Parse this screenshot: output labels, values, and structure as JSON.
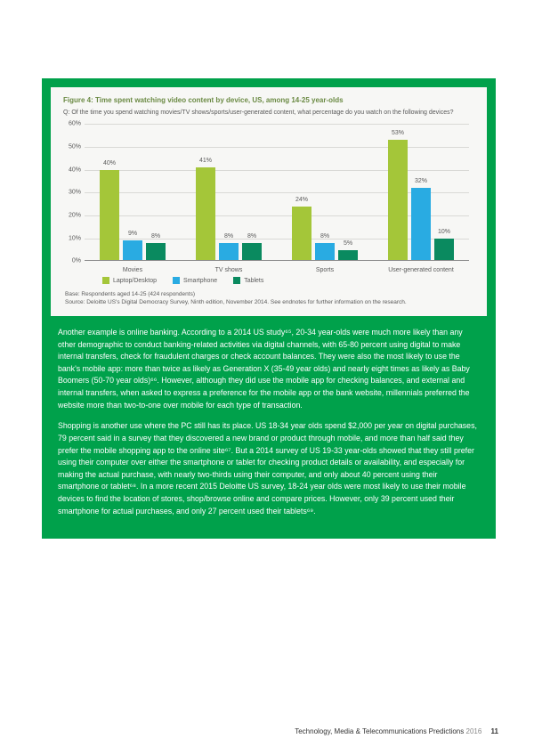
{
  "chart": {
    "title": "Figure 4: Time spent watching video content by device, US, among 14-25 year-olds",
    "question": "Q: Of the time you spend watching movies/TV shows/sports/user-generated content, what percentage do you watch on the following devices?",
    "ymax": 60,
    "ytick_step": 10,
    "categories": [
      "Movies",
      "TV shows",
      "Sports",
      "User-generated content"
    ],
    "series": [
      {
        "name": "Laptop/Desktop",
        "color": "#a4c639",
        "values": [
          40,
          41,
          24,
          53
        ]
      },
      {
        "name": "Smartphone",
        "color": "#29abe2",
        "values": [
          9,
          8,
          8,
          32
        ]
      },
      {
        "name": "Tablets",
        "color": "#0a8a5f",
        "values": [
          8,
          8,
          5,
          10
        ]
      }
    ],
    "base_text": "Base: Respondents aged 14-25 (424 respondents)",
    "source_text": "Source: Deloitte US's Digital Democracy Survey, Ninth edition, November 2014. See endnotes for further information on the research.",
    "background_color": "#f7f7f5",
    "grid_color": "#d9d9d6"
  },
  "paragraphs": {
    "p1": "Another example is online banking. According to a 2014 US study⁶⁵, 20-34 year-olds were much more likely than any other demographic to conduct banking-related activities via digital channels, with 65-80 percent using digital to make internal transfers, check for fraudulent charges or check account balances. They were also the most likely to use the bank's mobile app: more than twice as likely as Generation X (35-49 year olds) and nearly eight times as likely as Baby Boomers (50-70 year olds)⁶⁶. However, although they did use the mobile app for checking balances, and external and internal transfers, when asked to express a preference for the mobile app or the bank website, millennials preferred the website more than two-to-one over mobile for each type of transaction.",
    "p2": "Shopping is another use where the PC still has its place. US 18-34 year olds spend $2,000 per year on digital purchases, 79 percent said in a survey that they discovered a new brand or product through mobile, and more than half said they prefer the mobile shopping app to the online site⁶⁷. But a 2014 survey of US 19-33 year-olds showed that they still prefer using their computer over either the smartphone or tablet for checking product details or availability, and especially for making the actual purchase, with nearly two-thirds using their computer, and only about 40 percent using their smartphone or tablet⁶⁸. In a more recent 2015 Deloitte US survey, 18-24 year olds were most likely to use their mobile devices to find the location of stores, shop/browse online and compare prices. However, only 39 percent used their smartphone for actual purchases, and only 27 percent used their tablets⁶⁹."
  },
  "footer": {
    "publication": "Technology, Media & Telecommunications Predictions",
    "year": "2016",
    "page": "11"
  }
}
